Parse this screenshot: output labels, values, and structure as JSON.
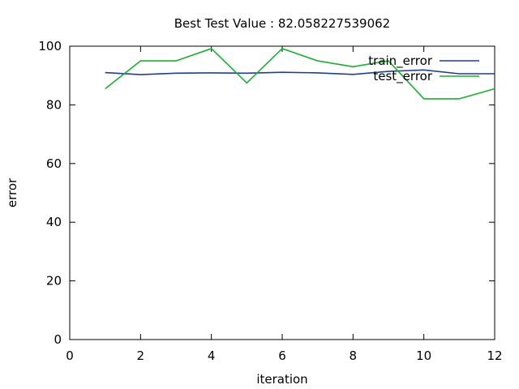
{
  "chart_data": {
    "type": "line",
    "title": "Best Test Value : 82.058227539062",
    "xlabel": "iteration",
    "ylabel": "error",
    "xlim": [
      0,
      12
    ],
    "ylim": [
      0,
      100
    ],
    "x_ticks": [
      "0",
      "2",
      "4",
      "6",
      "8",
      "10",
      "12"
    ],
    "y_ticks": [
      "0",
      "20",
      "40",
      "60",
      "80",
      "100"
    ],
    "x_tick_values": [
      0,
      2,
      4,
      6,
      8,
      10,
      12
    ],
    "y_tick_values": [
      0,
      20,
      40,
      60,
      80,
      100
    ],
    "grid": false,
    "legend_position": "top-right",
    "x": [
      1,
      2,
      3,
      4,
      5,
      6,
      7,
      8,
      9,
      10,
      11,
      12
    ],
    "series": [
      {
        "name": "train_error",
        "color": "#1f3f8f",
        "values": [
          91.0,
          90.3,
          90.8,
          90.9,
          90.8,
          91.1,
          90.9,
          90.4,
          91.4,
          91.9,
          90.6,
          90.6
        ]
      },
      {
        "name": "test_error",
        "color": "#18b030",
        "values": [
          85.5,
          95.0,
          95.0,
          99.2,
          87.5,
          99.2,
          95.0,
          93.0,
          95.0,
          82.06,
          82.06,
          85.5
        ]
      }
    ]
  }
}
